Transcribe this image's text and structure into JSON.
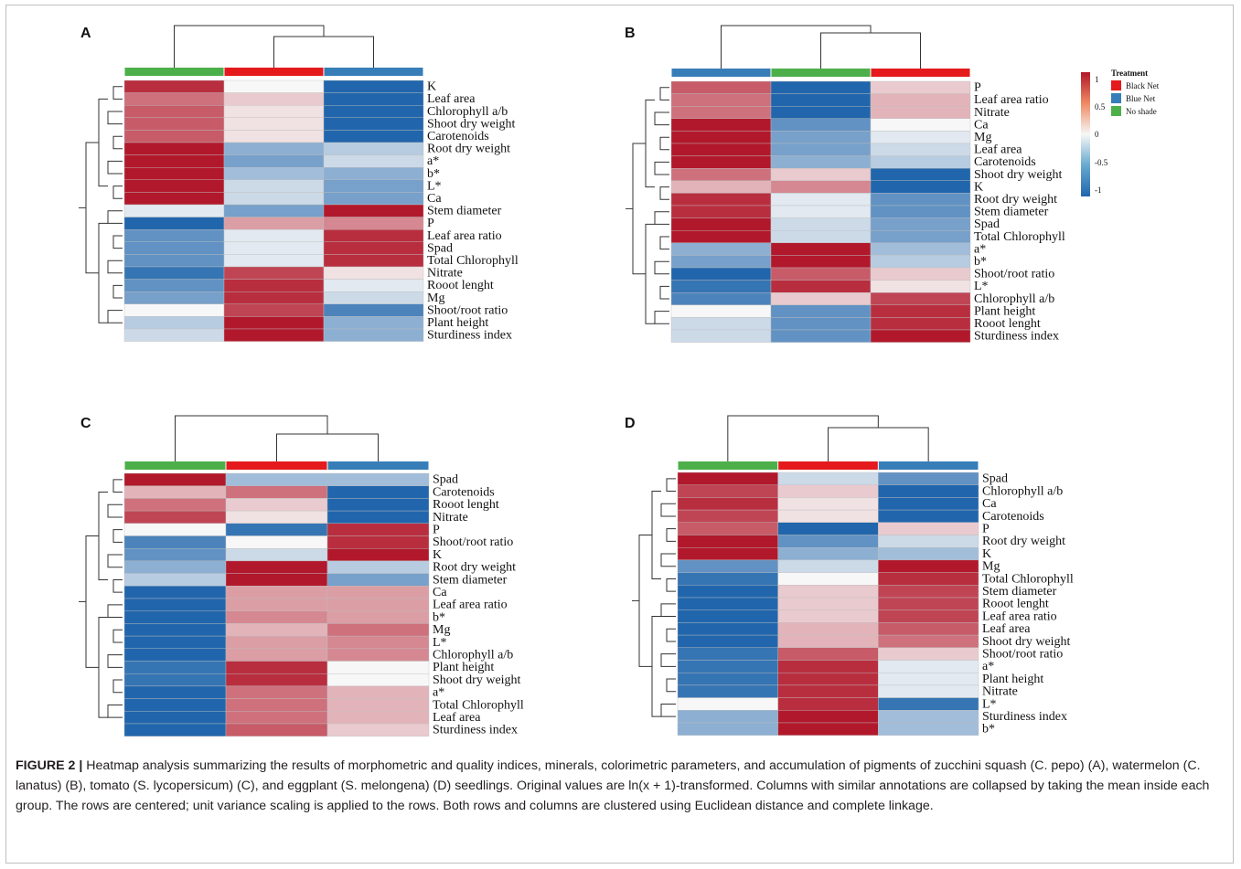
{
  "colors": {
    "high": "#b2182b",
    "mid": "#f7f7f7",
    "low": "#2166ac",
    "black_net": "#e41a1c",
    "blue_net": "#377eb8",
    "no_shade": "#4daf4a"
  },
  "treatment_legend": {
    "title": "Treatment",
    "items": [
      {
        "label": "Black Net",
        "color": "#e41a1c"
      },
      {
        "label": "Blue Net",
        "color": "#377eb8"
      },
      {
        "label": "No shade",
        "color": "#4daf4a"
      }
    ]
  },
  "scale_legend": {
    "ticks": [
      "1",
      "0.5",
      "0",
      "-0.5",
      "-1"
    ]
  },
  "chart_data": [
    {
      "type": "heatmap",
      "panel": "A",
      "column_treatments": [
        "No shade",
        "Black Net",
        "Blue Net"
      ],
      "rows": [
        "K",
        "Leaf area",
        "Chlorophyll a/b",
        "Shoot dry weight",
        "Carotenoids",
        "Root dry weight",
        "a*",
        "b*",
        "L*",
        "Ca",
        "Stem diameter",
        "P",
        "Leaf area ratio",
        "Spad",
        "Total Chlorophyll",
        "Nitrate",
        "Rooot lenght",
        "Mg",
        "Shoot/root ratio",
        "Plant height",
        "Sturdiness index"
      ],
      "values": [
        [
          0.9,
          0.0,
          -1.0
        ],
        [
          0.6,
          0.2,
          -1.0
        ],
        [
          0.7,
          0.1,
          -1.0
        ],
        [
          0.7,
          0.1,
          -1.0
        ],
        [
          0.7,
          0.1,
          -1.0
        ],
        [
          1.0,
          -0.5,
          -0.3
        ],
        [
          1.0,
          -0.6,
          -0.2
        ],
        [
          1.0,
          -0.4,
          -0.5
        ],
        [
          1.0,
          -0.2,
          -0.6
        ],
        [
          1.0,
          -0.2,
          -0.6
        ],
        [
          -0.1,
          -0.6,
          1.0
        ],
        [
          -1.0,
          0.4,
          0.5
        ],
        [
          -0.7,
          -0.1,
          0.9
        ],
        [
          -0.7,
          -0.1,
          0.9
        ],
        [
          -0.7,
          -0.1,
          0.9
        ],
        [
          -0.9,
          0.8,
          0.1
        ],
        [
          -0.7,
          0.9,
          -0.1
        ],
        [
          -0.6,
          0.9,
          -0.2
        ],
        [
          0.0,
          0.8,
          -0.8
        ],
        [
          -0.3,
          1.0,
          -0.5
        ],
        [
          -0.2,
          1.0,
          -0.5
        ]
      ]
    },
    {
      "type": "heatmap",
      "panel": "B",
      "column_treatments": [
        "Blue Net",
        "No shade",
        "Black Net"
      ],
      "rows": [
        "P",
        "Leaf area ratio",
        "Nitrate",
        "Ca",
        "Mg",
        "Leaf area",
        "Carotenoids",
        "Shoot dry weight",
        "K",
        "Root dry weight",
        "Stem diameter",
        "Spad",
        "Total Chlorophyll",
        "a*",
        "b*",
        "Shoot/root ratio",
        "L*",
        "Chlorophyll a/b",
        "Plant height",
        "Rooot lenght",
        "Sturdiness index"
      ],
      "values": [
        [
          0.7,
          -1.0,
          0.2
        ],
        [
          0.6,
          -1.0,
          0.3
        ],
        [
          0.6,
          -1.0,
          0.3
        ],
        [
          1.0,
          -0.7,
          0.0
        ],
        [
          1.0,
          -0.6,
          -0.1
        ],
        [
          1.0,
          -0.6,
          -0.2
        ],
        [
          1.0,
          -0.5,
          -0.3
        ],
        [
          0.6,
          0.2,
          -1.0
        ],
        [
          0.3,
          0.5,
          -1.0
        ],
        [
          0.9,
          -0.1,
          -0.7
        ],
        [
          0.9,
          -0.1,
          -0.7
        ],
        [
          1.0,
          -0.2,
          -0.6
        ],
        [
          1.0,
          -0.2,
          -0.6
        ],
        [
          -0.5,
          1.0,
          -0.4
        ],
        [
          -0.6,
          1.0,
          -0.3
        ],
        [
          -1.0,
          0.7,
          0.2
        ],
        [
          -0.9,
          0.9,
          0.1
        ],
        [
          -0.8,
          0.2,
          0.8
        ],
        [
          0.0,
          -0.7,
          0.9
        ],
        [
          -0.2,
          -0.7,
          0.9
        ],
        [
          -0.2,
          -0.7,
          1.0
        ]
      ]
    },
    {
      "type": "heatmap",
      "panel": "C",
      "column_treatments": [
        "No shade",
        "Black Net",
        "Blue Net"
      ],
      "rows": [
        "Spad",
        "Carotenoids",
        "Rooot lenght",
        "Nitrate",
        "P",
        "Shoot/root ratio",
        "K",
        "Root dry weight",
        "Stem diameter",
        "Ca",
        "Leaf area ratio",
        "b*",
        "Mg",
        "L*",
        "Chlorophyll a/b",
        "Plant height",
        "Shoot dry weight",
        "a*",
        "Total Chlorophyll",
        "Leaf area",
        "Sturdiness index"
      ],
      "values": [
        [
          1.0,
          -0.4,
          -0.4
        ],
        [
          0.3,
          0.6,
          -1.0
        ],
        [
          0.6,
          0.2,
          -1.0
        ],
        [
          0.8,
          0.1,
          -1.0
        ],
        [
          0.0,
          -0.9,
          0.9
        ],
        [
          -0.8,
          0.0,
          0.9
        ],
        [
          -0.7,
          -0.2,
          1.0
        ],
        [
          -0.5,
          1.0,
          -0.3
        ],
        [
          -0.3,
          1.0,
          -0.6
        ],
        [
          -1.0,
          0.4,
          0.4
        ],
        [
          -1.0,
          0.4,
          0.4
        ],
        [
          -1.0,
          0.5,
          0.4
        ],
        [
          -1.0,
          0.3,
          0.6
        ],
        [
          -1.0,
          0.4,
          0.5
        ],
        [
          -1.0,
          0.4,
          0.5
        ],
        [
          -0.9,
          0.9,
          0.0
        ],
        [
          -0.9,
          0.9,
          0.0
        ],
        [
          -1.0,
          0.6,
          0.3
        ],
        [
          -1.0,
          0.6,
          0.3
        ],
        [
          -1.0,
          0.6,
          0.3
        ],
        [
          -1.0,
          0.7,
          0.2
        ]
      ]
    },
    {
      "type": "heatmap",
      "panel": "D",
      "column_treatments": [
        "No shade",
        "Black Net",
        "Blue Net"
      ],
      "rows": [
        "Spad",
        "Chlorophyll a/b",
        "Ca",
        "Carotenoids",
        "P",
        "Root dry weight",
        "K",
        "Mg",
        "Total Chlorophyll",
        "Stem diameter",
        "Rooot lenght",
        "Leaf area ratio",
        "Leaf area",
        "Shoot dry weight",
        "Shoot/root ratio",
        "a*",
        "Plant height",
        "Nitrate",
        "L*",
        "Sturdiness index",
        "b*"
      ],
      "values": [
        [
          1.0,
          -0.2,
          -0.7
        ],
        [
          0.8,
          0.2,
          -1.0
        ],
        [
          0.9,
          0.1,
          -1.0
        ],
        [
          0.8,
          0.1,
          -1.0
        ],
        [
          0.7,
          -1.0,
          0.2
        ],
        [
          1.0,
          -0.7,
          -0.2
        ],
        [
          1.0,
          -0.5,
          -0.4
        ],
        [
          -0.7,
          -0.2,
          1.0
        ],
        [
          -0.9,
          0.0,
          0.9
        ],
        [
          -1.0,
          0.2,
          0.8
        ],
        [
          -1.0,
          0.2,
          0.8
        ],
        [
          -1.0,
          0.2,
          0.8
        ],
        [
          -1.0,
          0.3,
          0.7
        ],
        [
          -1.0,
          0.3,
          0.6
        ],
        [
          -0.9,
          0.7,
          0.2
        ],
        [
          -0.9,
          0.9,
          -0.1
        ],
        [
          -0.9,
          0.9,
          -0.1
        ],
        [
          -0.9,
          0.9,
          -0.1
        ],
        [
          0.0,
          0.9,
          -0.9
        ],
        [
          -0.5,
          1.0,
          -0.4
        ],
        [
          -0.5,
          1.0,
          -0.4
        ]
      ]
    }
  ],
  "caption": {
    "figure_label": "FIGURE 2 |",
    "text": " Heatmap analysis summarizing the results of morphometric and quality indices, minerals, colorimetric parameters, and accumulation of pigments of zucchini squash (C. pepo) (A), watermelon (C. lanatus) (B), tomato (S. lycopersicum) (C), and eggplant (S. melongena) (D) seedlings. Original values are ln(x + 1)-transformed. Columns with similar annotations are collapsed by taking the mean inside each group. The rows are centered; unit variance scaling is applied to the rows. Both rows and columns are clustered using Euclidean distance and complete linkage."
  }
}
